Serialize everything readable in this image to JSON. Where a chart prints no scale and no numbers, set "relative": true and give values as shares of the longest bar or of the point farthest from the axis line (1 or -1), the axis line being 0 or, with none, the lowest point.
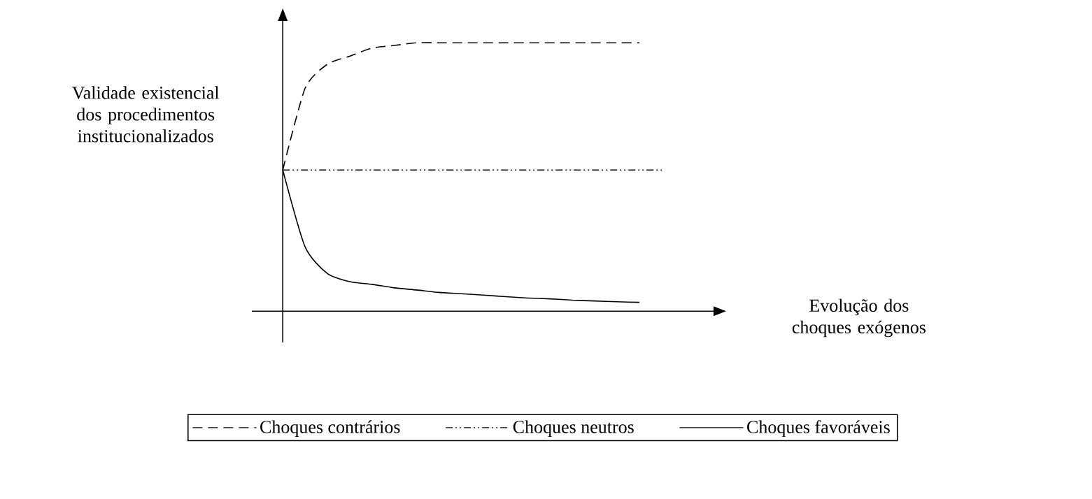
{
  "chart_data": {
    "type": "line",
    "annotations": [
      "Validade existencial dos procedimentos institucionalizados",
      "Evolução dos choques exógenos"
    ],
    "categories": [
      null,
      null,
      null,
      null,
      null,
      null,
      null,
      null,
      null,
      null,
      null,
      null,
      null,
      null,
      null,
      null,
      null,
      null
    ],
    "relative": true,
    "marker": "none",
    "legend": "bottom",
    "series": [
      {
        "name": "Choques contrários",
        "color": "#000000",
        "line_style": "dashed",
        "values": [
          0.526,
          0.83,
          0.92,
          0.95,
          0.98,
          0.99,
          1,
          1,
          1,
          1,
          1,
          1,
          1,
          1,
          1,
          1,
          1,
          null
        ]
      },
      {
        "name": "Choques neutros",
        "color": "#000000",
        "line_style": "dashdot",
        "values": [
          0.526,
          0.526,
          0.526,
          0.526,
          0.526,
          0.526,
          0.526,
          0.526,
          0.526,
          0.526,
          0.526,
          0.526,
          0.526,
          0.526,
          0.526,
          0.526,
          0.526,
          0.526
        ]
      },
      {
        "name": "Choques favoráveis",
        "color": "#000000",
        "line_style": "solid",
        "values": [
          0.526,
          0.24,
          0.14,
          0.11,
          0.1,
          0.087,
          0.079,
          0.07,
          0.065,
          0.06,
          0.054,
          0.049,
          0.046,
          0.041,
          0.038,
          0.035,
          0.033,
          null
        ]
      }
    ]
  }
}
